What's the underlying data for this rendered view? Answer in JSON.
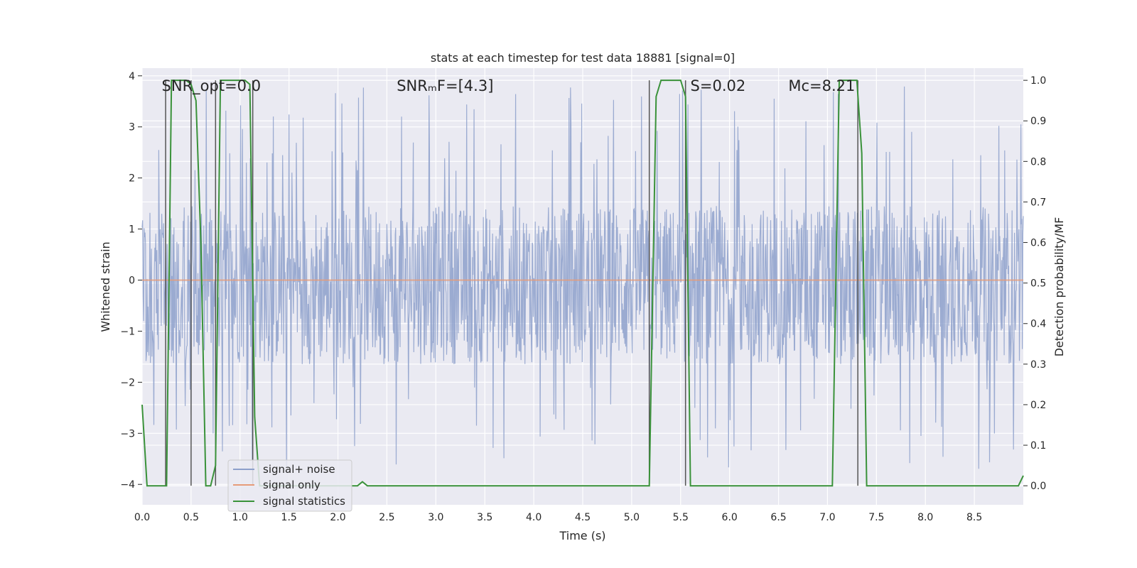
{
  "chart_data": {
    "type": "line",
    "title": "stats at each timestep for test data 18881 [signal=0]",
    "xlabel": "Time (s)",
    "ylabel": "Whitened strain",
    "y2label": "Detection probability/MF",
    "xlim": [
      0.0,
      9.0
    ],
    "ylim": [
      -4.4,
      4.15
    ],
    "y2lim": [
      -0.047,
      1.03
    ],
    "grid": true,
    "legend_position": "lower-left",
    "x_ticks": [
      "0.0",
      "0.5",
      "1.0",
      "1.5",
      "2.0",
      "2.5",
      "3.0",
      "3.5",
      "4.0",
      "4.5",
      "5.0",
      "5.5",
      "6.0",
      "6.5",
      "7.0",
      "7.5",
      "8.0",
      "8.5"
    ],
    "y_ticks": [
      "−4",
      "−3",
      "−2",
      "−1",
      "0",
      "1",
      "2",
      "3",
      "4"
    ],
    "y2_ticks": [
      "0.0",
      "0.1",
      "0.2",
      "0.3",
      "0.4",
      "0.5",
      "0.6",
      "0.7",
      "0.8",
      "0.9",
      "1.0"
    ],
    "annotations": [
      {
        "text": "SNR_opt=0.0",
        "x": 0.2,
        "y": 3.8
      },
      {
        "text": "SNRₘF=[4.3]",
        "x": 2.6,
        "y": 3.8
      },
      {
        "text": "S=0.02",
        "x": 5.6,
        "y": 3.8
      },
      {
        "text": "Mᴄ=8.21",
        "x": 6.6,
        "y": 3.8
      }
    ],
    "series": [
      {
        "name": "signal+ noise",
        "color": "#8da0cb",
        "axis": "left",
        "kind": "noise",
        "sample_rate": 200,
        "typical_range": [
          -1.65,
          1.45
        ],
        "peak_range": [
          -3.7,
          3.8
        ]
      },
      {
        "name": "signal only",
        "color": "#e69b78",
        "axis": "left",
        "x": [
          0.0,
          9.0
        ],
        "y": [
          0.0,
          0.0
        ]
      },
      {
        "name": "signal statistics",
        "color": "#3a923a",
        "axis": "right",
        "x": [
          0.0,
          0.05,
          0.1,
          0.15,
          0.2,
          0.25,
          0.3,
          0.35,
          0.4,
          0.45,
          0.5,
          0.55,
          0.6,
          0.65,
          0.7,
          0.75,
          0.8,
          0.85,
          0.9,
          0.95,
          1.0,
          1.05,
          1.1,
          1.15,
          1.2,
          1.25,
          1.3,
          1.4,
          1.5,
          2.0,
          2.1,
          2.2,
          2.25,
          2.3,
          2.5,
          3.0,
          4.0,
          5.0,
          5.18,
          5.25,
          5.3,
          5.35,
          5.45,
          5.5,
          5.55,
          5.6,
          5.7,
          6.0,
          7.0,
          7.05,
          7.12,
          7.2,
          7.3,
          7.35,
          7.4,
          7.45,
          8.0,
          8.5,
          8.95,
          9.0
        ],
        "y": [
          0.2,
          0.0,
          0.0,
          0.0,
          0.0,
          0.0,
          1.0,
          1.0,
          1.0,
          1.0,
          0.99,
          0.95,
          0.6,
          0.0,
          0.0,
          0.05,
          1.0,
          1.0,
          1.0,
          1.0,
          1.0,
          1.0,
          0.99,
          0.17,
          0.0,
          0.0,
          0.0,
          0.0,
          0.0,
          0.0,
          0.0,
          0.0,
          0.01,
          0.0,
          0.0,
          0.0,
          0.0,
          0.0,
          0.0,
          0.96,
          1.0,
          1.0,
          1.0,
          1.0,
          0.96,
          0.0,
          0.0,
          0.0,
          0.0,
          0.0,
          1.0,
          1.0,
          1.0,
          0.82,
          0.0,
          0.0,
          0.0,
          0.0,
          0.0,
          0.025
        ]
      }
    ],
    "vertical_markers": [
      0.24,
      0.5,
      0.75,
      1.13,
      5.18,
      5.55,
      7.31
    ]
  }
}
